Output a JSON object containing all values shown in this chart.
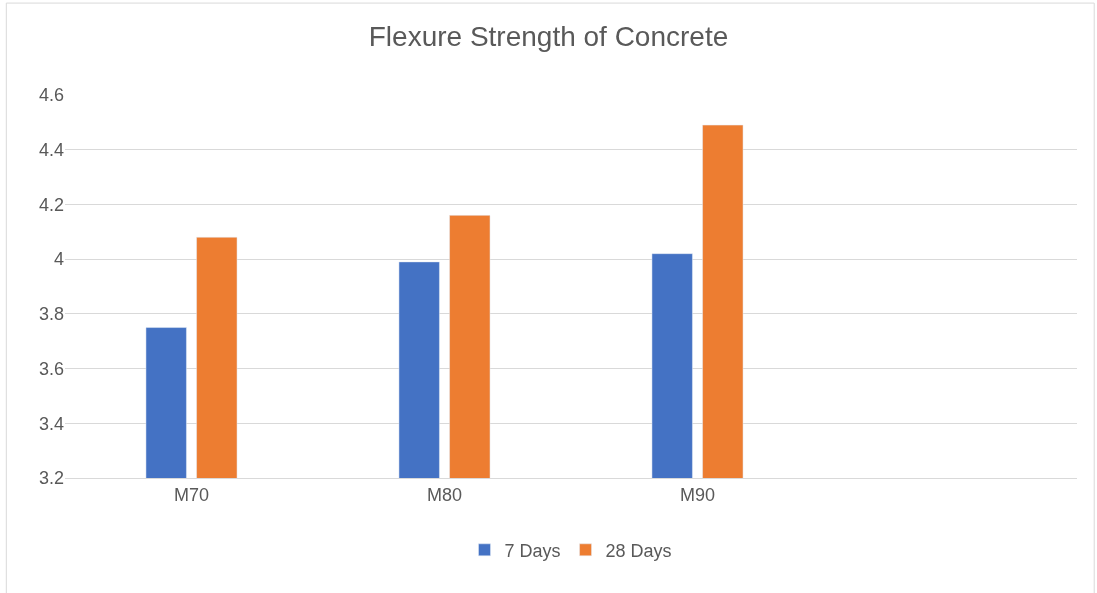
{
  "chart_data": {
    "type": "bar",
    "title": "Flexure Strength of Concrete",
    "categories": [
      "M70",
      "M80",
      "M90",
      null
    ],
    "series": [
      {
        "name": "7 Days",
        "color": "#4472c4",
        "values": [
          3.75,
          3.99,
          4.02,
          null
        ]
      },
      {
        "name": "28 Days",
        "color": "#ed7d31",
        "values": [
          4.08,
          4.16,
          4.49,
          null
        ]
      }
    ],
    "ylim": [
      3.2,
      4.6
    ],
    "yticks": [
      3.2,
      3.4,
      3.6,
      3.8,
      {
        "value": 4,
        "label": "4"
      },
      4.2,
      4.4,
      4.6
    ],
    "grid": "y",
    "legend": "bottom"
  }
}
